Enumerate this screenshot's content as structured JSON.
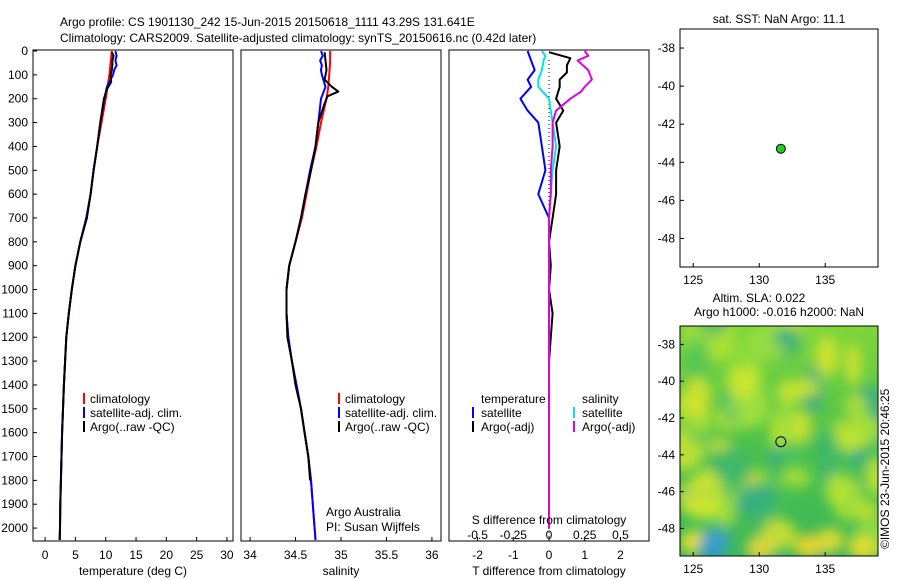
{
  "header": {
    "line1": "Argo profile: CS 1901130_242 15-Jun-2015 20150618_1111 43.29S 131.641E",
    "line2": "Climatology: CARS2009. Satellite-adjusted climatology: synTS_20150616.nc (0.42d later)"
  },
  "colors": {
    "climatology": "#ff0000",
    "satellite": "#0000ff",
    "argo": "#000000",
    "sal_satellite": "#00e5e5",
    "sal_argo": "#e000e0",
    "marker": "#22cc22"
  },
  "chart_data": [
    {
      "type": "line",
      "id": "temperature",
      "xlabel": "temperature (deg C)",
      "ylim": [
        2050,
        0
      ],
      "xlim": [
        -2,
        31
      ],
      "x_ticks": [
        "0",
        "5",
        "10",
        "15",
        "20",
        "25",
        "30"
      ],
      "x_tick_values": [
        0,
        5,
        10,
        15,
        20,
        25,
        30
      ],
      "y_ticks": [
        "0",
        "100",
        "200",
        "300",
        "400",
        "500",
        "600",
        "700",
        "800",
        "900",
        "1000",
        "1100",
        "1200",
        "1300",
        "1400",
        "1500",
        "1600",
        "1700",
        "1800",
        "1900",
        "2000"
      ],
      "y_tick_values": [
        0,
        100,
        200,
        300,
        400,
        500,
        600,
        700,
        800,
        900,
        1000,
        1100,
        1200,
        1300,
        1400,
        1500,
        1600,
        1700,
        1800,
        1900,
        2000
      ],
      "legend": [
        "climatology",
        "satellite-adj. clim.",
        "Argo(..raw -QC)"
      ],
      "series": [
        {
          "name": "climatology",
          "color": "#ff0000",
          "depth": [
            0,
            50,
            100,
            150,
            200,
            300,
            400,
            500,
            600,
            700,
            800,
            900,
            1000,
            1100,
            1200,
            1300,
            1400,
            1500,
            1600,
            1700,
            1800,
            1900,
            2000,
            2050
          ],
          "values": [
            11.0,
            10.8,
            10.6,
            10.3,
            10.0,
            9.3,
            8.6,
            8.0,
            7.5,
            6.8,
            5.8,
            5.0,
            4.4,
            3.9,
            3.5,
            3.3,
            3.1,
            2.95,
            2.8,
            2.7,
            2.6,
            2.5,
            2.45,
            2.4
          ]
        },
        {
          "name": "satellite-adj. clim.",
          "color": "#0000ff",
          "depth": [
            0,
            20,
            40,
            60,
            80,
            100,
            150,
            200,
            300,
            400,
            500,
            600,
            700,
            800,
            900,
            1000,
            1100,
            1200,
            1300,
            1400,
            1500,
            1600,
            1700,
            1800,
            1900,
            2000,
            2050
          ],
          "values": [
            11.6,
            11.8,
            11.6,
            11.8,
            11.4,
            11.2,
            10.2,
            9.8,
            9.1,
            8.6,
            8.0,
            7.5,
            6.8,
            5.8,
            5.0,
            4.4,
            3.9,
            3.5,
            3.3,
            3.1,
            2.95,
            2.8,
            2.7,
            2.6,
            2.5,
            2.45,
            2.4
          ]
        },
        {
          "name": "Argo(..raw -QC)",
          "color": "#000000",
          "depth": [
            5,
            20,
            40,
            60,
            80,
            100,
            130,
            160,
            200,
            300,
            400,
            500,
            600,
            700,
            800,
            900,
            1000,
            1100,
            1200,
            1300,
            1400,
            1500,
            1600,
            1700,
            1800,
            1900,
            2000,
            2050
          ],
          "values": [
            11.0,
            11.3,
            11.1,
            11.1,
            11.0,
            10.8,
            10.9,
            10.2,
            9.7,
            9.1,
            8.6,
            8.0,
            7.5,
            6.9,
            5.8,
            5.0,
            4.4,
            3.9,
            3.5,
            3.3,
            3.1,
            2.95,
            2.8,
            2.7,
            2.6,
            2.5,
            2.45,
            2.4
          ]
        }
      ]
    },
    {
      "type": "line",
      "id": "salinity",
      "xlabel": "salinity",
      "ylim": [
        2050,
        0
      ],
      "xlim": [
        33.9,
        36.1
      ],
      "x_ticks": [
        "34",
        "34.5",
        "35",
        "35.5",
        "36"
      ],
      "x_tick_values": [
        34,
        34.5,
        35,
        35.5,
        36
      ],
      "legend": [
        "climatology",
        "satellite-adj. clim.",
        "Argo(..raw -QC)"
      ],
      "annotation": [
        "Argo Australia",
        "PI: Susan Wijffels"
      ],
      "series": [
        {
          "name": "climatology",
          "color": "#ff0000",
          "depth": [
            0,
            50,
            100,
            150,
            200,
            300,
            400,
            500,
            600,
            700,
            800,
            900,
            1000,
            1100,
            1200,
            1300,
            1400,
            1500,
            1600,
            1700,
            1800,
            1900,
            2000,
            2050
          ],
          "values": [
            34.88,
            34.88,
            34.87,
            34.86,
            34.84,
            34.78,
            34.73,
            34.67,
            34.62,
            34.57,
            34.5,
            34.43,
            34.4,
            34.4,
            34.42,
            34.46,
            34.51,
            34.56,
            34.6,
            34.64,
            34.67,
            34.69,
            34.71,
            34.72
          ]
        },
        {
          "name": "satellite-adj. clim.",
          "color": "#0000ff",
          "depth": [
            0,
            20,
            40,
            60,
            80,
            100,
            150,
            200,
            300,
            400,
            500,
            600,
            700,
            800,
            900,
            1000,
            1100,
            1200,
            1300,
            1400,
            1500,
            1600,
            1700,
            1800,
            1900,
            2000,
            2050
          ],
          "values": [
            34.78,
            34.8,
            34.77,
            34.79,
            34.78,
            34.79,
            34.83,
            34.78,
            34.75,
            34.72,
            34.66,
            34.61,
            34.56,
            34.5,
            34.43,
            34.4,
            34.4,
            34.42,
            34.46,
            34.51,
            34.56,
            34.6,
            34.64,
            34.67,
            34.69,
            34.71,
            34.72
          ]
        },
        {
          "name": "Argo(..raw -QC)",
          "color": "#000000",
          "depth": [
            5,
            40,
            80,
            120,
            150,
            170,
            190,
            220,
            300,
            400,
            500,
            600,
            700,
            800,
            900,
            1000,
            1100,
            1200,
            1300,
            1400,
            1500,
            1600,
            1700,
            1800
          ],
          "values": [
            34.82,
            34.83,
            34.84,
            34.82,
            34.9,
            34.97,
            34.85,
            34.82,
            34.75,
            34.72,
            34.67,
            34.61,
            34.56,
            34.5,
            34.43,
            34.4,
            34.4,
            34.41,
            34.46,
            34.5,
            34.56,
            34.6,
            34.64,
            34.66
          ]
        }
      ]
    },
    {
      "type": "line",
      "id": "difference",
      "xlabel": "T difference from climatology",
      "xlabel_top": "S difference from climatology",
      "ylim": [
        2050,
        0
      ],
      "xlim": [
        -2.8,
        2.8
      ],
      "x_ticks": [
        "-2",
        "-1",
        "0",
        "1",
        "2"
      ],
      "x_tick_values": [
        -2,
        -1,
        0,
        1,
        2
      ],
      "x_ticks_top": [
        "-0.5",
        "-0.25",
        "0",
        "0.25",
        "0.5"
      ],
      "x_tick_values_top": [
        -2,
        -1,
        0,
        1,
        2
      ],
      "legend_left_title": "temperature",
      "legend_right_title": "salinity",
      "legend_left": [
        "satellite",
        "Argo(-adj)"
      ],
      "legend_right": [
        "satellite",
        "Argo(-adj)"
      ],
      "series": [
        {
          "name": "temperature satellite",
          "color": "#0000ff",
          "depth": [
            0,
            40,
            80,
            120,
            150,
            200,
            250,
            300,
            400,
            500,
            600,
            700,
            800,
            900,
            1000,
            1200,
            1400,
            1600,
            1800,
            2000
          ],
          "values": [
            -0.6,
            -0.5,
            -0.4,
            -0.6,
            -0.5,
            -0.8,
            -0.6,
            -0.3,
            -0.2,
            -0.1,
            -0.3,
            0.0,
            0.0,
            0.0,
            0.0,
            0.0,
            0.0,
            0.0,
            0.0,
            0.0
          ]
        },
        {
          "name": "temperature Argo(-adj)",
          "color": "#000000",
          "depth": [
            5,
            30,
            60,
            90,
            120,
            150,
            200,
            250,
            300,
            400,
            500,
            600,
            700,
            800,
            900,
            1000,
            1100,
            1200,
            1300,
            1400,
            1500,
            1600,
            1800,
            2000
          ],
          "values": [
            0.0,
            0.6,
            0.5,
            0.5,
            0.3,
            0.3,
            0.2,
            0.4,
            0.2,
            0.3,
            0.2,
            0.2,
            0.1,
            0.0,
            0.05,
            0.0,
            0.1,
            0.05,
            0.0,
            0.0,
            0.0,
            0.0,
            0.0,
            0.0
          ]
        },
        {
          "name": "salinity satellite",
          "color": "#00e5e5",
          "depth": [
            0,
            20,
            40,
            80,
            120,
            150,
            200,
            300,
            400,
            500,
            600,
            700,
            800,
            900,
            1000,
            1200,
            1400,
            1600,
            1800,
            2000
          ],
          "values": [
            -0.2,
            -0.1,
            -0.15,
            -0.2,
            -0.3,
            -0.3,
            0.0,
            0.1,
            0.2,
            0.1,
            0.05,
            0.0,
            0.0,
            0.0,
            0.0,
            0.0,
            0.0,
            0.0,
            0.0,
            0.0
          ]
        },
        {
          "name": "salinity Argo(-adj)",
          "color": "#e000e0",
          "depth": [
            0,
            20,
            40,
            80,
            120,
            150,
            170,
            200,
            250,
            300,
            400,
            500,
            600,
            700,
            800,
            900,
            1000,
            1200,
            1400,
            1600,
            1800,
            2000
          ],
          "values": [
            1.0,
            1.1,
            0.8,
            1.1,
            1.2,
            1.0,
            0.9,
            0.6,
            0.2,
            0.1,
            0.1,
            0.05,
            0.05,
            0.0,
            0.0,
            0.0,
            0.0,
            0.0,
            0.0,
            0.0,
            0.0,
            0.0
          ]
        }
      ]
    },
    {
      "type": "scatter",
      "id": "sst-map",
      "title": "sat. SST: NaN Argo: 11.1",
      "xlim": [
        124,
        139
      ],
      "ylim": [
        -49.5,
        -37
      ],
      "x_ticks": [
        "125",
        "130",
        "135"
      ],
      "x_tick_values": [
        125,
        130,
        135
      ],
      "y_ticks": [
        "-38",
        "-40",
        "-42",
        "-44",
        "-46",
        "-48"
      ],
      "y_tick_values": [
        -38,
        -40,
        -42,
        -44,
        -46,
        -48
      ],
      "points": [
        {
          "x": 131.641,
          "y": -43.29
        }
      ]
    },
    {
      "type": "heatmap",
      "id": "sla-map",
      "title_line1": "Altim. SLA: 0.022",
      "title_line2": "Argo h1000: -0.016 h2000: NaN",
      "side_label": "©IMOS 23-Jun-2015 20:46:25",
      "xlim": [
        124,
        139
      ],
      "ylim": [
        -49.5,
        -37
      ],
      "x_ticks": [
        "125",
        "130",
        "135"
      ],
      "x_tick_values": [
        125,
        130,
        135
      ],
      "y_ticks": [
        "-38",
        "-40",
        "-42",
        "-44",
        "-46",
        "-48"
      ],
      "y_tick_values": [
        -38,
        -40,
        -42,
        -44,
        -46,
        -48
      ],
      "points": [
        {
          "x": 131.641,
          "y": -43.29
        }
      ]
    }
  ]
}
